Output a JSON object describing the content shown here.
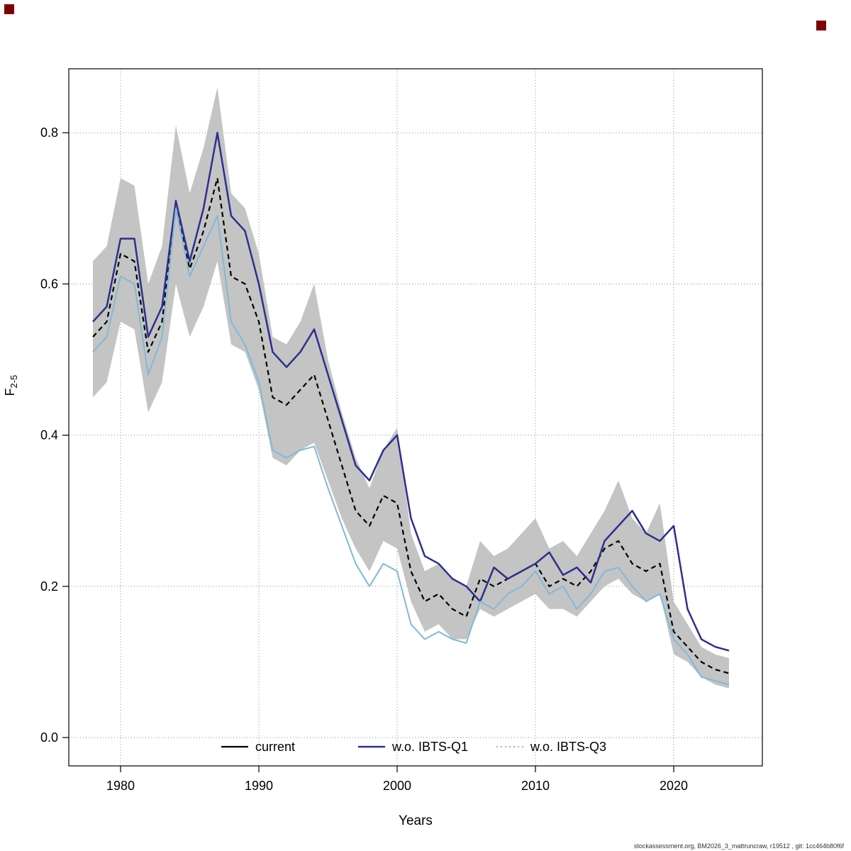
{
  "page": {
    "footer": "stockassessment.org, BM2026_3_mattruncraw, r19512 , git: 1cc464b80f6f",
    "corner_marker_color": "#7f0000",
    "background": "#ffffff"
  },
  "chart_data": {
    "type": "line",
    "title": "",
    "xlabel": "Years",
    "ylabel_main": "F",
    "ylabel_sub": "2-5",
    "xlim": [
      1977.5,
      2024.5
    ],
    "ylim": [
      0.0,
      0.88
    ],
    "grid": "dotted",
    "grid_color": "#8c8c8c",
    "x_ticks": [
      1980,
      1990,
      2000,
      2010,
      2020
    ],
    "y_ticks": [
      0.0,
      0.2,
      0.4,
      0.6,
      0.8
    ],
    "y_tick_labels": [
      "0.0",
      "0.2",
      "0.4",
      "0.6",
      "0.8"
    ],
    "x": [
      1978,
      1979,
      1980,
      1981,
      1982,
      1983,
      1984,
      1985,
      1986,
      1987,
      1988,
      1989,
      1990,
      1991,
      1992,
      1993,
      1994,
      1995,
      1996,
      1997,
      1998,
      1999,
      2000,
      2001,
      2002,
      2003,
      2004,
      2005,
      2006,
      2007,
      2008,
      2009,
      2010,
      2011,
      2012,
      2013,
      2014,
      2015,
      2016,
      2017,
      2018,
      2019,
      2020,
      2021,
      2022,
      2023,
      2024
    ],
    "series": [
      {
        "name": "current",
        "color": "#000000",
        "width": 2.2,
        "dash": "7,5",
        "legend_dash": "",
        "values": [
          0.53,
          0.55,
          0.64,
          0.63,
          0.51,
          0.55,
          0.7,
          0.62,
          0.67,
          0.74,
          0.61,
          0.6,
          0.55,
          0.45,
          0.44,
          0.46,
          0.48,
          0.42,
          0.36,
          0.3,
          0.28,
          0.32,
          0.31,
          0.22,
          0.18,
          0.19,
          0.17,
          0.16,
          0.21,
          0.2,
          0.21,
          0.22,
          0.23,
          0.2,
          0.21,
          0.2,
          0.22,
          0.25,
          0.26,
          0.23,
          0.22,
          0.23,
          0.14,
          0.12,
          0.1,
          0.09,
          0.085
        ]
      },
      {
        "name": "w.o. IBTS-Q1",
        "color": "#2d2f8e",
        "width": 2.5,
        "dash": "",
        "legend_dash": "",
        "values": [
          0.55,
          0.57,
          0.66,
          0.66,
          0.53,
          0.57,
          0.71,
          0.63,
          0.7,
          0.8,
          0.69,
          0.67,
          0.6,
          0.51,
          0.49,
          0.51,
          0.54,
          0.48,
          0.42,
          0.36,
          0.34,
          0.38,
          0.4,
          0.29,
          0.24,
          0.23,
          0.21,
          0.2,
          0.18,
          0.225,
          0.21,
          0.22,
          0.23,
          0.245,
          0.215,
          0.225,
          0.205,
          0.26,
          0.28,
          0.3,
          0.27,
          0.26,
          0.28,
          0.17,
          0.13,
          0.12,
          0.115
        ]
      },
      {
        "name": "w.o. IBTS-Q3",
        "color": "#82b8d9",
        "width": 2.0,
        "dash": "",
        "legend_dash": "2,4",
        "values": [
          0.51,
          0.53,
          0.61,
          0.6,
          0.48,
          0.53,
          0.7,
          0.61,
          0.65,
          0.69,
          0.55,
          0.52,
          0.47,
          0.38,
          0.37,
          0.38,
          0.385,
          0.33,
          0.28,
          0.23,
          0.2,
          0.23,
          0.22,
          0.15,
          0.13,
          0.14,
          0.13,
          0.125,
          0.18,
          0.17,
          0.19,
          0.2,
          0.22,
          0.19,
          0.2,
          0.17,
          0.19,
          0.22,
          0.225,
          0.2,
          0.18,
          0.19,
          0.13,
          0.11,
          0.08,
          0.075,
          0.07
        ]
      }
    ],
    "band": {
      "applies_to": "current",
      "color": "#c4c4c4",
      "lower": [
        0.45,
        0.47,
        0.55,
        0.54,
        0.43,
        0.47,
        0.6,
        0.53,
        0.57,
        0.63,
        0.52,
        0.51,
        0.46,
        0.37,
        0.36,
        0.38,
        0.39,
        0.34,
        0.29,
        0.25,
        0.22,
        0.26,
        0.25,
        0.18,
        0.14,
        0.15,
        0.13,
        0.13,
        0.17,
        0.16,
        0.17,
        0.18,
        0.19,
        0.17,
        0.17,
        0.16,
        0.18,
        0.2,
        0.21,
        0.19,
        0.18,
        0.19,
        0.11,
        0.1,
        0.08,
        0.07,
        0.065
      ],
      "upper": [
        0.63,
        0.65,
        0.74,
        0.73,
        0.6,
        0.65,
        0.81,
        0.72,
        0.78,
        0.86,
        0.72,
        0.7,
        0.64,
        0.53,
        0.52,
        0.55,
        0.6,
        0.5,
        0.43,
        0.37,
        0.33,
        0.38,
        0.41,
        0.27,
        0.22,
        0.23,
        0.21,
        0.2,
        0.26,
        0.24,
        0.25,
        0.27,
        0.29,
        0.25,
        0.26,
        0.24,
        0.27,
        0.3,
        0.34,
        0.29,
        0.27,
        0.31,
        0.18,
        0.15,
        0.12,
        0.11,
        0.105
      ]
    },
    "legend": {
      "position": "bottom-inside",
      "labels": [
        "current",
        "w.o. IBTS-Q1",
        "w.o. IBTS-Q3"
      ]
    }
  }
}
